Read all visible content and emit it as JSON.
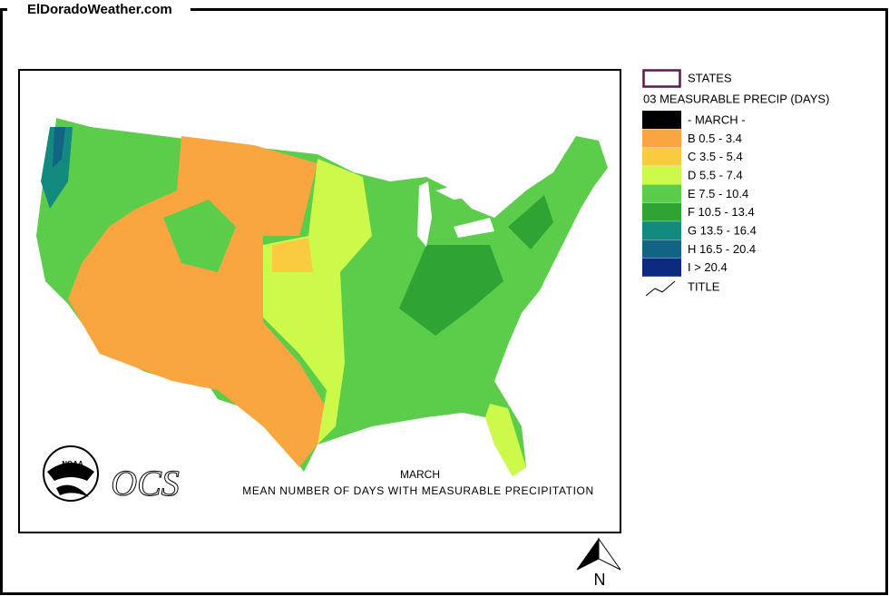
{
  "header": {
    "site": "ElDoradoWeather.com"
  },
  "legend": {
    "states_label": "STATES",
    "title": "03 MEASURABLE PRECIP (DAYS)",
    "items": [
      {
        "label": "- MARCH -",
        "color": "#000000"
      },
      {
        "label": "B 0.5 - 3.4",
        "color": "#f9a640"
      },
      {
        "label": "C 3.5 - 5.4",
        "color": "#fbcb3f"
      },
      {
        "label": "D 5.5 - 7.4",
        "color": "#cdfa4a"
      },
      {
        "label": "E 7.5 - 10.4",
        "color": "#5ccd4a"
      },
      {
        "label": "F 10.5 - 13.4",
        "color": "#2fa333"
      },
      {
        "label": "G 13.5 - 16.4",
        "color": "#138a80"
      },
      {
        "label": "H 16.5 - 20.4",
        "color": "#116483"
      },
      {
        "label": "I > 20.4",
        "color": "#0c2a80"
      }
    ],
    "title_label": "TITLE"
  },
  "map": {
    "caption_month": "MARCH",
    "caption": "MEAN NUMBER OF DAYS WITH MEASURABLE PRECIPITATION",
    "logo": "NOAA",
    "agency": "OCS",
    "north": "N"
  }
}
